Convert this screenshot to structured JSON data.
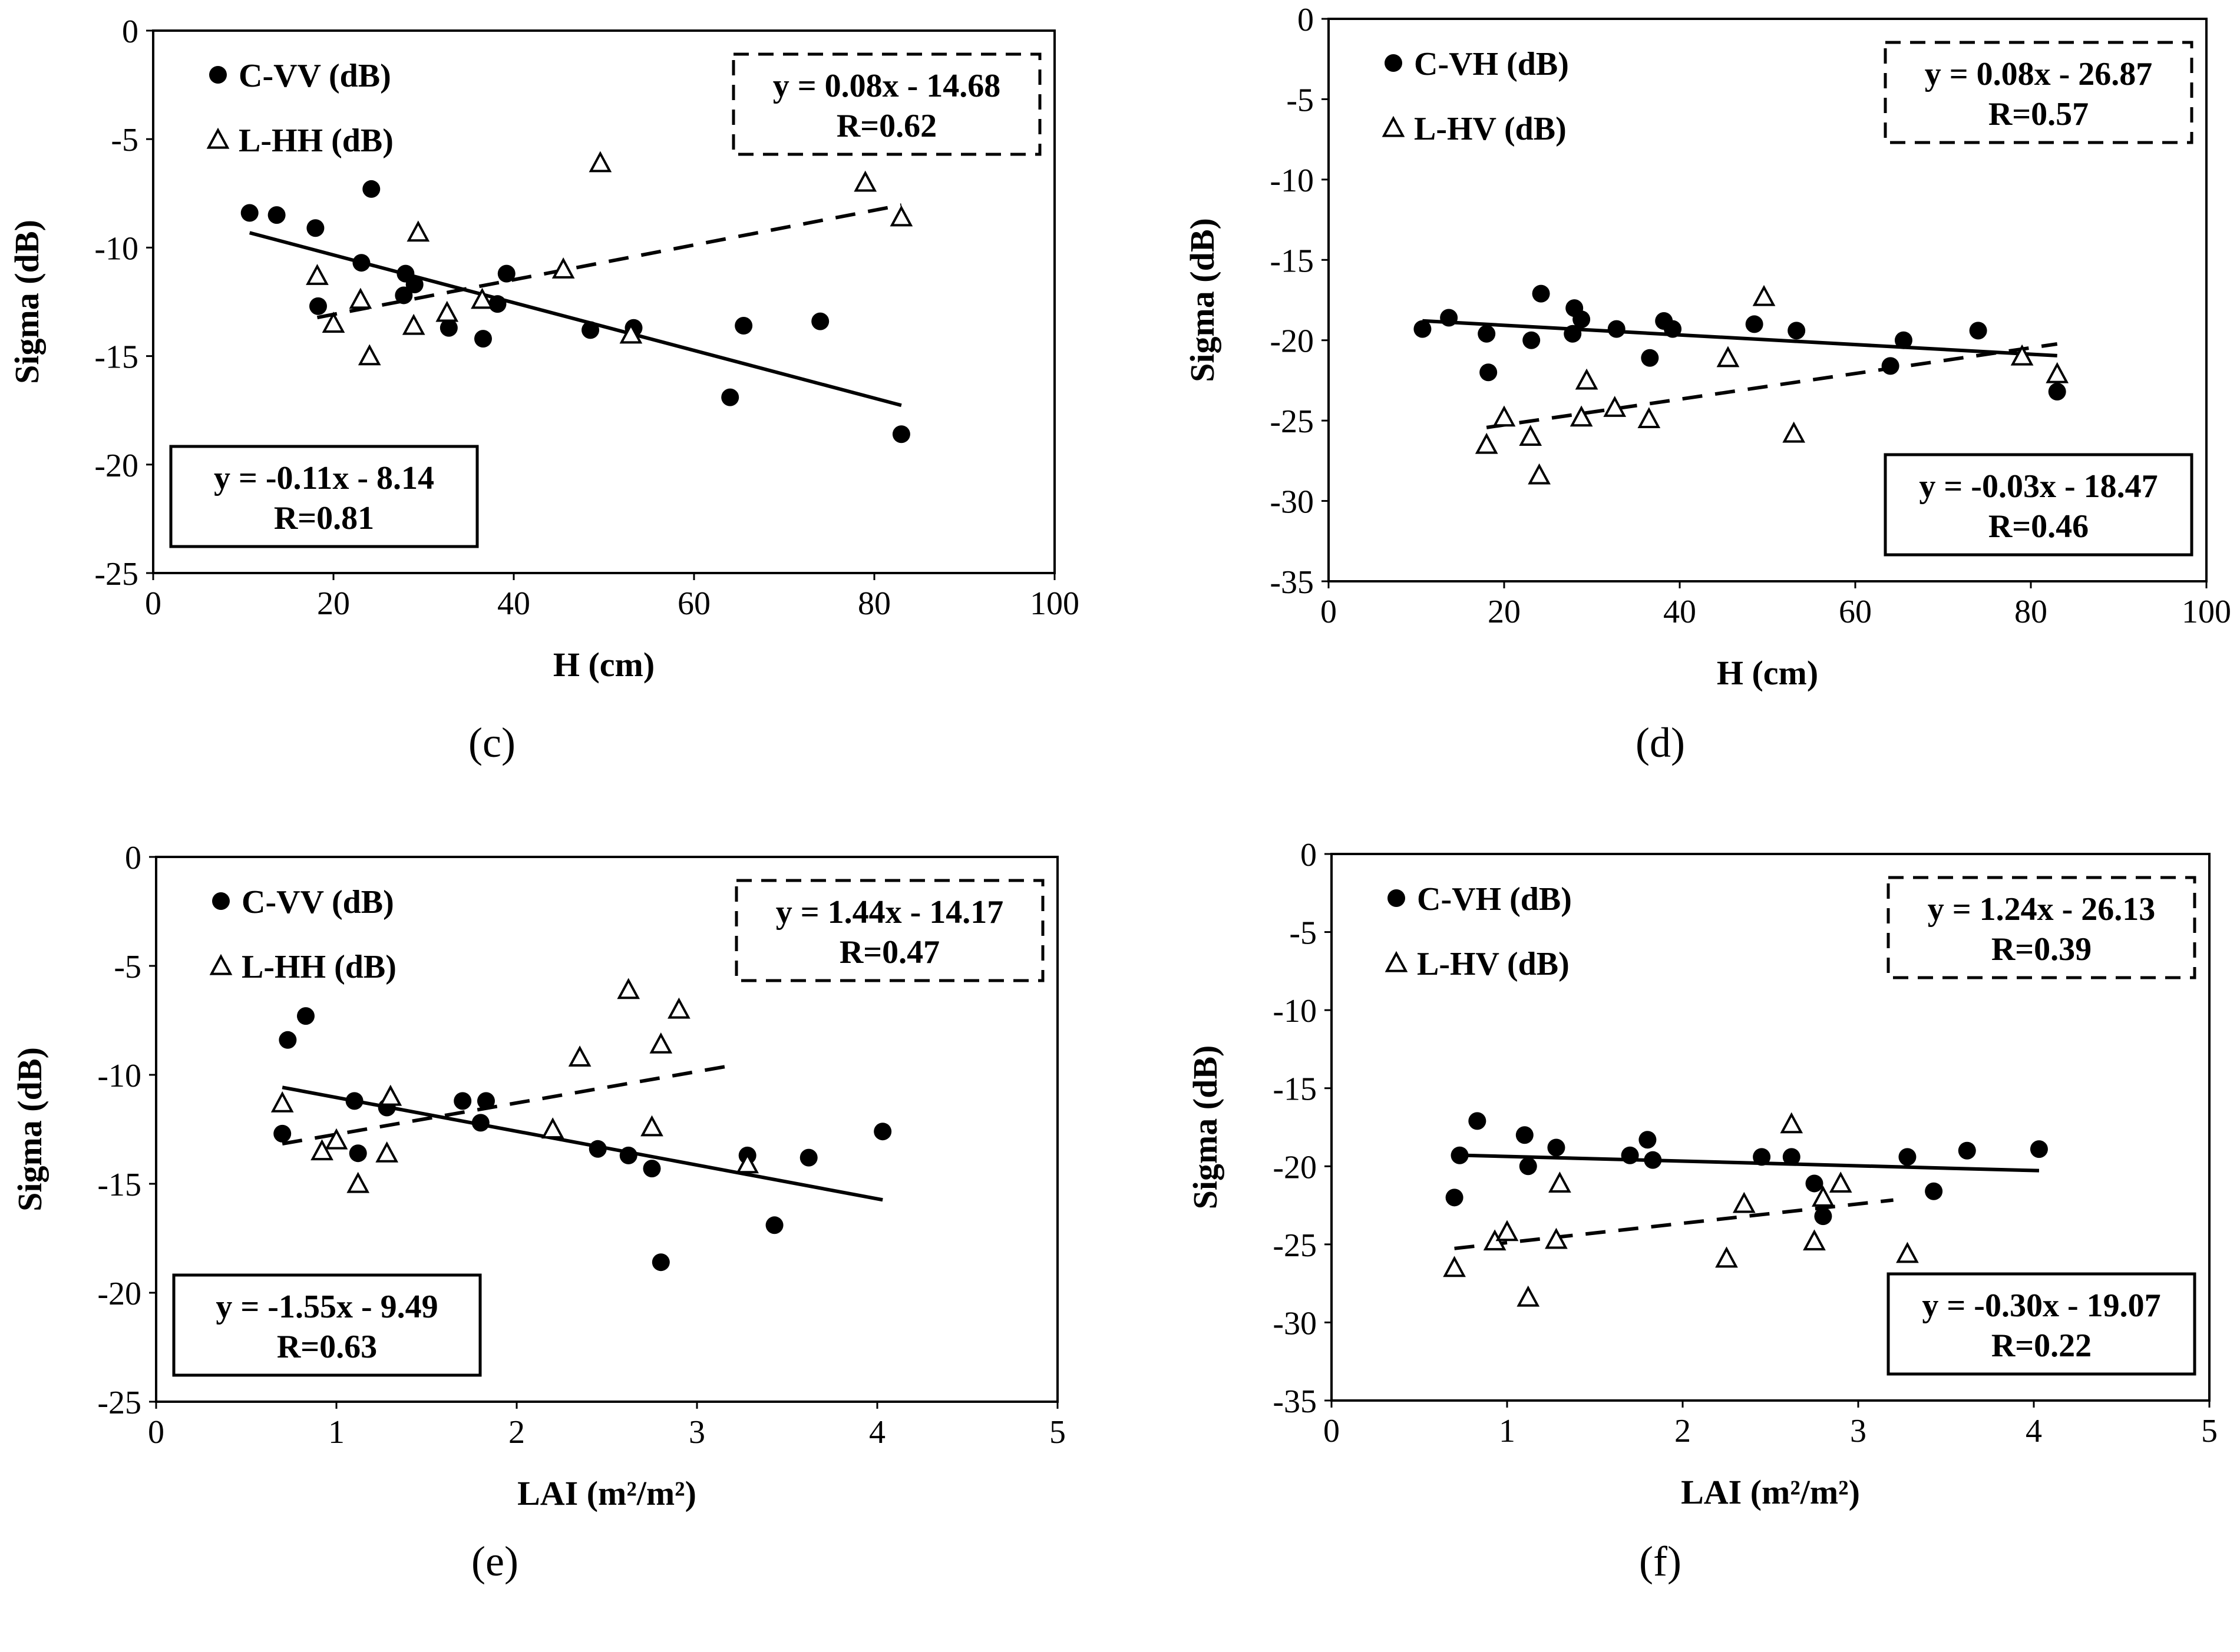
{
  "chart_data": [
    {
      "panel": "(c)",
      "type": "scatter",
      "xlabel": "H (cm)",
      "ylabel": "Sigma  (dB)",
      "xlim": [
        0,
        100
      ],
      "ylim": [
        -25,
        0
      ],
      "xticks": [
        "0",
        "20",
        "40",
        "60",
        "80",
        "100"
      ],
      "yticks": [
        "0",
        "-5",
        "-10",
        "-15",
        "-20",
        "-25"
      ],
      "legend_position": "top-left",
      "series": [
        {
          "name": "C-VV (dB)",
          "marker": "circle",
          "line_style": "solid",
          "points": [
            [
              10.7,
              -8.4
            ],
            [
              13.7,
              -8.5
            ],
            [
              18,
              -9.1
            ],
            [
              18.3,
              -12.7
            ],
            [
              24.2,
              -7.3
            ],
            [
              23.1,
              -10.7
            ],
            [
              28,
              -11.2
            ],
            [
              27.8,
              -12.2
            ],
            [
              29,
              -11.7
            ],
            [
              32.8,
              -13.7
            ],
            [
              36.6,
              -14.2
            ],
            [
              38.2,
              -12.6
            ],
            [
              39.2,
              -11.2
            ],
            [
              48.5,
              -13.8
            ],
            [
              53.3,
              -13.7
            ],
            [
              64,
              -16.9
            ],
            [
              65.5,
              -13.6
            ],
            [
              74,
              -13.4
            ],
            [
              83,
              -18.6
            ]
          ],
          "fit": {
            "slope": -0.11,
            "intercept": -8.14,
            "x_range": [
              10.7,
              83
            ]
          },
          "equation": "y = -0.11x - 8.14",
          "r": "R=0.81",
          "box_style": "solid",
          "box_position": "bottom-left"
        },
        {
          "name": "L-HH (dB)",
          "marker": "triangle",
          "line_style": "dashed",
          "points": [
            [
              18.2,
              -11.3
            ],
            [
              20,
              -13.5
            ],
            [
              23,
              -12.4
            ],
            [
              24,
              -15
            ],
            [
              28.9,
              -13.6
            ],
            [
              29.4,
              -9.3
            ],
            [
              32.6,
              -13
            ],
            [
              36.5,
              -12.4
            ],
            [
              45.5,
              -11
            ],
            [
              49.6,
              -6.1
            ],
            [
              53,
              -14
            ],
            [
              79,
              -7
            ],
            [
              83,
              -8.6
            ]
          ],
          "fit": {
            "slope": 0.08,
            "intercept": -14.68,
            "x_range": [
              18.2,
              83
            ]
          },
          "equation": "y = 0.08x - 14.68",
          "r": "R=0.62",
          "box_style": "dashed",
          "box_position": "top-right"
        }
      ]
    },
    {
      "panel": "(d)",
      "type": "scatter",
      "xlabel": "H (cm)",
      "ylabel": "Sigma  (dB)",
      "xlim": [
        0,
        100
      ],
      "ylim": [
        -35,
        0
      ],
      "xticks": [
        "0",
        "20",
        "40",
        "60",
        "80",
        "100"
      ],
      "yticks": [
        "0",
        "-5",
        "-10",
        "-15",
        "-20",
        "-25",
        "-30",
        "-35"
      ],
      "legend_position": "top-left",
      "series": [
        {
          "name": "C-VH (dB)",
          "marker": "circle",
          "line_style": "solid",
          "points": [
            [
              10.7,
              -19.3
            ],
            [
              13.7,
              -18.6
            ],
            [
              18,
              -19.6
            ],
            [
              18.2,
              -22
            ],
            [
              23.1,
              -20
            ],
            [
              24.2,
              -17.1
            ],
            [
              27.8,
              -19.6
            ],
            [
              28,
              -18
            ],
            [
              28.8,
              -18.7
            ],
            [
              32.8,
              -19.3
            ],
            [
              36.6,
              -21.1
            ],
            [
              38.2,
              -18.8
            ],
            [
              39.2,
              -19.3
            ],
            [
              48.5,
              -19
            ],
            [
              53.3,
              -19.4
            ],
            [
              64,
              -21.6
            ],
            [
              65.5,
              -20
            ],
            [
              74,
              -19.4
            ],
            [
              83,
              -23.2
            ]
          ],
          "fit": {
            "slope": -0.03,
            "intercept": -18.47,
            "x_range": [
              10.7,
              83
            ]
          },
          "equation": "y = -0.03x - 18.47",
          "r": "R=0.46",
          "box_style": "solid",
          "box_position": "bottom-right"
        },
        {
          "name": "L-HV (dB)",
          "marker": "triangle",
          "line_style": "dashed",
          "points": [
            [
              18,
              -26.5
            ],
            [
              20,
              -24.8
            ],
            [
              23,
              -26
            ],
            [
              24,
              -28.4
            ],
            [
              28.8,
              -24.8
            ],
            [
              29.4,
              -22.5
            ],
            [
              32.6,
              -24.2
            ],
            [
              36.5,
              -24.9
            ],
            [
              45.5,
              -21.1
            ],
            [
              49.6,
              -17.3
            ],
            [
              53,
              -25.8
            ],
            [
              79,
              -21
            ],
            [
              83,
              -22.1
            ]
          ],
          "fit": {
            "slope": 0.08,
            "intercept": -26.87,
            "x_range": [
              18,
              83
            ]
          },
          "equation": "y = 0.08x - 26.87",
          "r": "R=0.57",
          "box_style": "dashed",
          "box_position": "top-right"
        }
      ]
    },
    {
      "panel": "(e)",
      "type": "scatter",
      "xlabel": "LAI (m²/m²)",
      "ylabel": "Sigma (dB)",
      "xlim": [
        0,
        5
      ],
      "ylim": [
        -25,
        0
      ],
      "xticks": [
        "0",
        "1",
        "2",
        "3",
        "4",
        "5"
      ],
      "yticks": [
        "0",
        "-5",
        "-10",
        "-15",
        "-20",
        "-25"
      ],
      "legend_position": "top-left",
      "series": [
        {
          "name": "C-VV (dB)",
          "marker": "circle",
          "line_style": "solid",
          "points": [
            [
              0.7,
              -12.7
            ],
            [
              0.73,
              -8.4
            ],
            [
              0.83,
              -7.3
            ],
            [
              1.1,
              -11.2
            ],
            [
              1.12,
              -13.6
            ],
            [
              1.28,
              -11.5
            ],
            [
              1.7,
              -11.2
            ],
            [
              1.8,
              -12.2
            ],
            [
              1.83,
              -11.2
            ],
            [
              2.45,
              -13.4
            ],
            [
              2.62,
              -13.7
            ],
            [
              2.75,
              -14.3
            ],
            [
              2.8,
              -18.6
            ],
            [
              3.28,
              -13.7
            ],
            [
              3.43,
              -16.9
            ],
            [
              3.62,
              -13.8
            ],
            [
              4.03,
              -12.6
            ]
          ],
          "fit": {
            "slope": -1.55,
            "intercept": -9.49,
            "x_range": [
              0.7,
              4.03
            ]
          },
          "equation": "y = -1.55x - 9.49",
          "r": "R=0.63",
          "box_style": "solid",
          "box_position": "bottom-left"
        },
        {
          "name": "L-HH (dB)",
          "marker": "triangle",
          "line_style": "dashed",
          "points": [
            [
              0.7,
              -11.3
            ],
            [
              0.92,
              -13.5
            ],
            [
              1,
              -13
            ],
            [
              1.12,
              -15
            ],
            [
              1.28,
              -13.6
            ],
            [
              1.3,
              -11
            ],
            [
              2.2,
              -12.5
            ],
            [
              2.35,
              -9.2
            ],
            [
              2.62,
              -6.1
            ],
            [
              2.75,
              -12.4
            ],
            [
              2.8,
              -8.6
            ],
            [
              2.9,
              -7
            ],
            [
              3.28,
              -14.1
            ]
          ],
          "fit": {
            "slope": 1.44,
            "intercept": -14.17,
            "x_range": [
              0.7,
              3.2
            ]
          },
          "equation": "y = 1.44x - 14.17",
          "r": "R=0.47",
          "box_style": "dashed",
          "box_position": "top-right"
        }
      ]
    },
    {
      "panel": "(f)",
      "type": "scatter",
      "xlabel": "LAI (m²/m²)",
      "ylabel": "Sigma (dB)",
      "xlim": [
        0,
        5
      ],
      "ylim": [
        -35,
        0
      ],
      "xticks": [
        "0",
        "1",
        "2",
        "3",
        "4",
        "5"
      ],
      "yticks": [
        "0",
        "-5",
        "-10",
        "-15",
        "-20",
        "-25",
        "-30",
        "-35"
      ],
      "legend_position": "top-left",
      "series": [
        {
          "name": "C-VH (dB)",
          "marker": "circle",
          "line_style": "solid",
          "points": [
            [
              0.7,
              -22
            ],
            [
              0.73,
              -19.3
            ],
            [
              0.83,
              -17.1
            ],
            [
              1.1,
              -18
            ],
            [
              1.12,
              -20
            ],
            [
              1.28,
              -18.8
            ],
            [
              1.7,
              -19.3
            ],
            [
              1.8,
              -18.3
            ],
            [
              1.83,
              -19.6
            ],
            [
              2.45,
              -19.4
            ],
            [
              2.62,
              -19.4
            ],
            [
              2.75,
              -21.1
            ],
            [
              2.8,
              -23.2
            ],
            [
              3.28,
              -19.4
            ],
            [
              3.43,
              -21.6
            ],
            [
              3.62,
              -19
            ],
            [
              4.03,
              -18.9
            ]
          ],
          "fit": {
            "slope": -0.3,
            "intercept": -19.07,
            "x_range": [
              0.7,
              4.03
            ]
          },
          "equation": "y = -0.30x - 19.07",
          "r": "R=0.22",
          "box_style": "solid",
          "box_position": "bottom-right"
        },
        {
          "name": "L-HV (dB)",
          "marker": "triangle",
          "line_style": "dashed",
          "points": [
            [
              0.7,
              -26.5
            ],
            [
              0.93,
              -24.8
            ],
            [
              1,
              -24.2
            ],
            [
              1.12,
              -28.4
            ],
            [
              1.28,
              -24.7
            ],
            [
              1.3,
              -21.1
            ],
            [
              2.25,
              -25.9
            ],
            [
              2.35,
              -22.4
            ],
            [
              2.62,
              -17.3
            ],
            [
              2.75,
              -24.8
            ],
            [
              2.8,
              -22
            ],
            [
              2.9,
              -21.1
            ],
            [
              3.28,
              -25.6
            ]
          ],
          "fit": {
            "slope": 1.24,
            "intercept": -26.13,
            "x_range": [
              0.7,
              3.2
            ]
          },
          "equation": "y = 1.24x - 26.13",
          "r": "R=0.39",
          "box_style": "dashed",
          "box_position": "top-right"
        }
      ]
    }
  ]
}
